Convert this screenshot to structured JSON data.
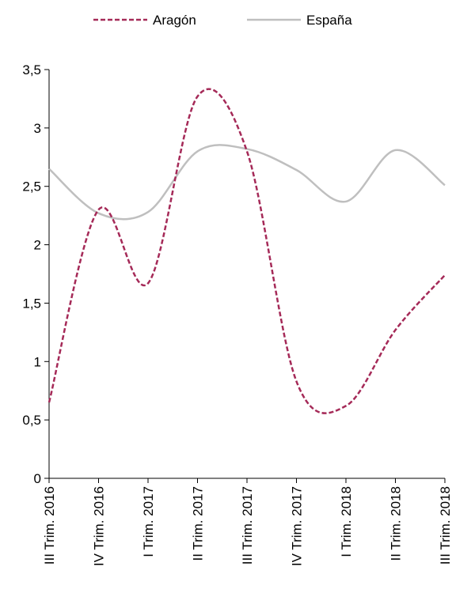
{
  "chart_data": {
    "type": "line",
    "categories": [
      "III Trim. 2016",
      "IV Trim. 2016",
      "I Trim. 2017",
      "II Trim. 2017",
      "III Trim. 2017",
      "IV Trim. 2017",
      "I Trim. 2018",
      "II Trim. 2018",
      "III Trim. 2018"
    ],
    "series": [
      {
        "name": "Aragón",
        "color": "#A52A58",
        "style": "dashed",
        "values": [
          0.65,
          2.3,
          1.67,
          3.27,
          2.8,
          0.83,
          0.62,
          1.27,
          1.74
        ]
      },
      {
        "name": "España",
        "color": "#BFBFBF",
        "style": "solid",
        "values": [
          2.65,
          2.27,
          2.28,
          2.8,
          2.82,
          2.64,
          2.37,
          2.81,
          2.51
        ]
      }
    ],
    "yticks": [
      "0",
      "0,5",
      "1",
      "1,5",
      "2",
      "2,5",
      "3",
      "3,5"
    ],
    "ylim": [
      0,
      3.5
    ],
    "title": "",
    "xlabel": "",
    "ylabel": "",
    "grid": false,
    "legend_position": "top-center"
  }
}
